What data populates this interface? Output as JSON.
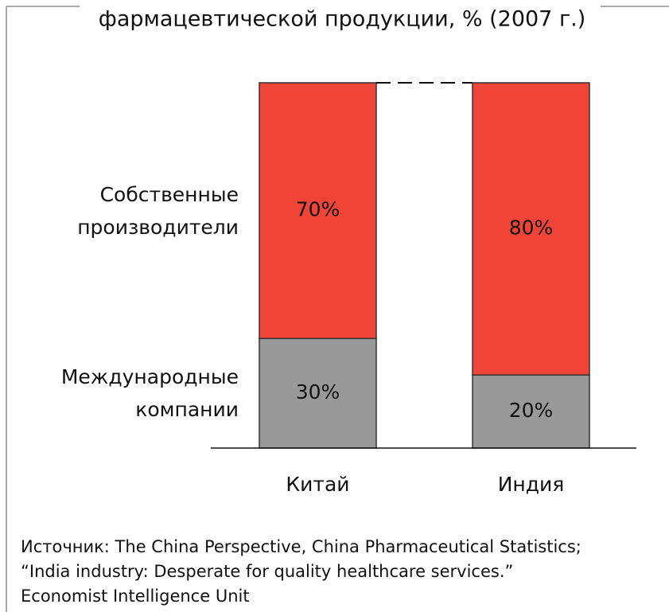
{
  "chart_data": {
    "type": "stacked_bar",
    "title": "фармацевтической продукции, % (2007 г.)",
    "categories": [
      "Китай",
      "Индия"
    ],
    "series": [
      {
        "name": "Международные компании",
        "color": "#999999",
        "values": [
          30,
          20
        ],
        "value_labels": [
          "30%",
          "20%"
        ]
      },
      {
        "name": "Собственные производители",
        "color": "#f04438",
        "values": [
          70,
          80
        ],
        "value_labels": [
          "70%",
          "80%"
        ]
      }
    ],
    "ylim": [
      0,
      100
    ],
    "source": [
      "Источник: The China Perspective, China Pharmaceutical Statistics;",
      "“India industry: Desperate for quality healthcare services.”",
      "Economist Intelligence Unit"
    ]
  }
}
